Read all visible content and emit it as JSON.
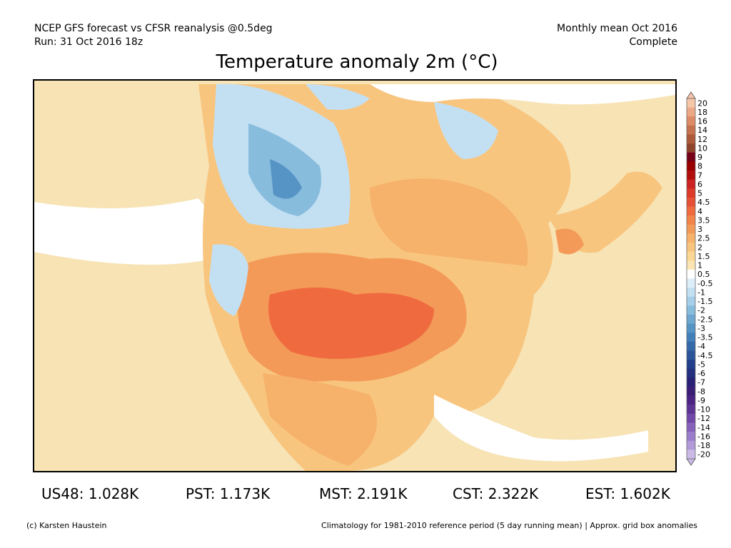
{
  "header": {
    "source_line": "NCEP GFS forecast vs CFSR reanalysis @0.5deg",
    "run_line": "Run: 31 Oct 2016 18z",
    "period_line": "Monthly mean Oct 2016",
    "status_line": "Complete"
  },
  "title": "Temperature anomaly 2m (°C)",
  "colorbar": {
    "labels": [
      "20",
      "18",
      "16",
      "14",
      "12",
      "10",
      "9",
      "8",
      "7",
      "6",
      "5",
      "4.5",
      "4",
      "3.5",
      "3",
      "2.5",
      "2",
      "1.5",
      "1",
      "0.5",
      "-0.5",
      "-1",
      "-1.5",
      "-2",
      "-2.5",
      "-3",
      "-3.5",
      "-4",
      "-4.5",
      "-5",
      "-6",
      "-7",
      "-8",
      "-9",
      "-10",
      "-12",
      "-14",
      "-16",
      "-18",
      "-20"
    ],
    "colors": [
      "#f6c6a8",
      "#eda986",
      "#dd8c66",
      "#c6724e",
      "#ad5a3a",
      "#8f432a",
      "#770019",
      "#990000",
      "#b30c0c",
      "#cc2222",
      "#dd3a2a",
      "#e65036",
      "#ef6b3f",
      "#f28349",
      "#f39a58",
      "#f6b26b",
      "#f8c57f",
      "#fbd694",
      "#fbe5b3",
      "#ffffff",
      "#dceefa",
      "#c3e0f3",
      "#a6cee9",
      "#88bcdd",
      "#6ea7d1",
      "#5694c5",
      "#427fb8",
      "#3469a9",
      "#2a559b",
      "#223f8c",
      "#22307f",
      "#292175",
      "#3a1d75",
      "#4c2383",
      "#5d3493",
      "#7148a7",
      "#8762bb",
      "#9c7dcb",
      "#b29ad8",
      "#cbbae6"
    ]
  },
  "stats": [
    {
      "label": "US48:",
      "value": "1.028K"
    },
    {
      "label": "PST:",
      "value": "1.173K"
    },
    {
      "label": "MST:",
      "value": "2.191K"
    },
    {
      "label": "CST:",
      "value": "2.322K"
    },
    {
      "label": "EST:",
      "value": "1.602K"
    }
  ],
  "footer": {
    "credit": "(c) Karsten Haustein",
    "note": "Climatology for 1981-2010 reference period (5 day running mean) | Approx. grid box anomalies"
  },
  "palette": {
    "ocean_warm": "#f7e3b4",
    "warm_1": "#f8c57f",
    "warm_2": "#f6b26b",
    "warm_3": "#f39a58",
    "warm_4": "#ef6b3f",
    "near_zero": "#ffffff",
    "cool_1": "#c3e0f3",
    "cool_2": "#88bcdd",
    "cool_3": "#5694c5"
  }
}
